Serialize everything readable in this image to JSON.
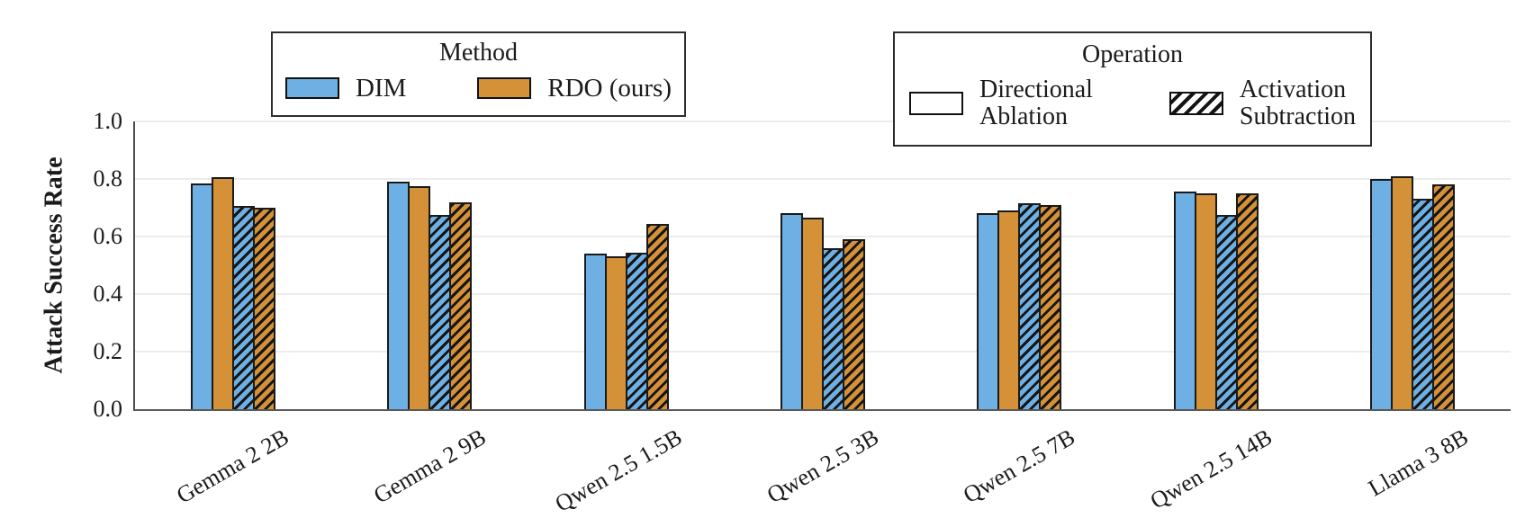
{
  "figure": {
    "background": "#ffffff",
    "text_color": "#1b1b1b",
    "grid_color": "#ececec",
    "axis_color": "#555555"
  },
  "legends": {
    "method": {
      "title": "Method",
      "entries": [
        {
          "label": "DIM",
          "color": "#6EB0E3",
          "hatch": false
        },
        {
          "label": "RDO (ours)",
          "color": "#D59138",
          "hatch": false
        }
      ]
    },
    "operation": {
      "title": "Operation",
      "entries": [
        {
          "label_lines": [
            "Directional",
            "Ablation"
          ],
          "color": "#ffffff",
          "hatch": false
        },
        {
          "label_lines": [
            "Activation",
            "Subtraction"
          ],
          "color": "#ffffff",
          "hatch": true
        }
      ]
    }
  },
  "chart_data": {
    "type": "bar",
    "title": "",
    "xlabel": "",
    "ylabel": "Attack Success Rate",
    "ylim": [
      0,
      1.0
    ],
    "yticks": [
      0.0,
      0.2,
      0.4,
      0.6,
      0.8,
      1.0
    ],
    "ytick_labels": [
      "0.0",
      "0.2",
      "0.4",
      "0.6",
      "0.8",
      "1.0"
    ],
    "grid": true,
    "legend_position": "top",
    "categories": [
      "Gemma 2 2B",
      "Gemma 2 9B",
      "Qwen 2.5 1.5B",
      "Qwen 2.5 3B",
      "Qwen 2.5 7B",
      "Qwen 2.5 14B",
      "Llama 3 8B"
    ],
    "series": [
      {
        "key": "dim-directional-ablation",
        "name": "DIM — Directional Ablation",
        "method": "DIM",
        "operation": "Directional Ablation",
        "color": "#6EB0E3",
        "hatch": false,
        "values": [
          0.785,
          0.79,
          0.54,
          0.68,
          0.68,
          0.755,
          0.8
        ]
      },
      {
        "key": "rdo-directional-ablation",
        "name": "RDO (ours) — Directional Ablation",
        "method": "RDO (ours)",
        "operation": "Directional Ablation",
        "color": "#D59138",
        "hatch": false,
        "values": [
          0.805,
          0.775,
          0.53,
          0.665,
          0.69,
          0.75,
          0.81
        ]
      },
      {
        "key": "dim-activation-subtraction",
        "name": "DIM — Activation Subtraction",
        "method": "DIM",
        "operation": "Activation Subtraction",
        "color": "#6EB0E3",
        "hatch": true,
        "values": [
          0.705,
          0.675,
          0.545,
          0.56,
          0.715,
          0.675,
          0.73
        ]
      },
      {
        "key": "rdo-activation-subtraction",
        "name": "RDO (ours) — Activation Subtraction",
        "method": "RDO (ours)",
        "operation": "Activation Subtraction",
        "color": "#D59138",
        "hatch": true,
        "values": [
          0.7,
          0.72,
          0.645,
          0.59,
          0.71,
          0.75,
          0.78
        ]
      }
    ],
    "bar_edge_color": "#1a1a1a",
    "hatch_style": "/"
  }
}
